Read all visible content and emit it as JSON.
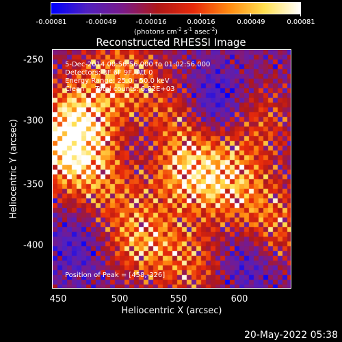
{
  "chart_data": {
    "type": "heatmap",
    "title": "Reconstructed RHESSI Image",
    "xlabel": "Heliocentric X (arcsec)",
    "ylabel": "Heliocentric Y (arcsec)",
    "xlim": [
      445,
      640
    ],
    "ylim": [
      -435,
      -245
    ],
    "x_ticks": [
      450,
      500,
      550,
      600
    ],
    "y_ticks": [
      -250,
      -300,
      -350,
      -400
    ],
    "colorbar": {
      "min": -0.00081,
      "max": 0.00081,
      "tick_values": [
        -0.00081,
        -0.00049,
        -0.00016,
        0.00016,
        0.00049,
        0.00081
      ],
      "tick_labels": [
        "-0.00081",
        "-0.00049",
        "-0.00016",
        "0.00016",
        "0.00049",
        "0.00081"
      ],
      "units_prefix": "(photons cm",
      "units_exp1": "-2",
      "units_mid1": " s",
      "units_exp2": "-1",
      "units_mid2": " asec",
      "units_exp3": "-2",
      "units_suffix": ")",
      "colormap": [
        "#0000ff",
        "#5020c0",
        "#7a1a8a",
        "#b01818",
        "#e82a0a",
        "#ff8a10",
        "#ffe050",
        "#ffffff"
      ]
    },
    "annotations": [
      "5-Dec-2014 00:56:56.000 to 01:02:56.000",
      "Detectors: 3F 6F 9F, Att 0",
      "Energy Range: 25.0 - 50.0 keV",
      "Clean     Total counts: 6.82E+03"
    ],
    "peak_annotation": "Position of Peak = [458,-326]",
    "peak_position": [
      458,
      -326
    ],
    "bright_regions": [
      {
        "x": 465,
        "y": -300,
        "amp": 0.85
      },
      {
        "x": 458,
        "y": -326,
        "amp": 1.0
      },
      {
        "x": 500,
        "y": -265,
        "amp": 0.7
      },
      {
        "x": 540,
        "y": -300,
        "amp": 0.55
      },
      {
        "x": 555,
        "y": -340,
        "amp": 0.9
      },
      {
        "x": 590,
        "y": -350,
        "amp": 0.75
      },
      {
        "x": 515,
        "y": -395,
        "amp": 0.8
      },
      {
        "x": 560,
        "y": -415,
        "amp": 0.6
      },
      {
        "x": 610,
        "y": -300,
        "amp": 0.55
      },
      {
        "x": 625,
        "y": -385,
        "amp": 0.65
      },
      {
        "x": 490,
        "y": -350,
        "amp": 0.5
      }
    ],
    "dark_regions": [
      {
        "x": 580,
        "y": -290,
        "amp": 0.9
      },
      {
        "x": 520,
        "y": -320,
        "amp": 0.5
      },
      {
        "x": 600,
        "y": -410,
        "amp": 0.7
      },
      {
        "x": 470,
        "y": -400,
        "amp": 0.5
      }
    ]
  },
  "timestamp": "20-May-2022 05:38"
}
